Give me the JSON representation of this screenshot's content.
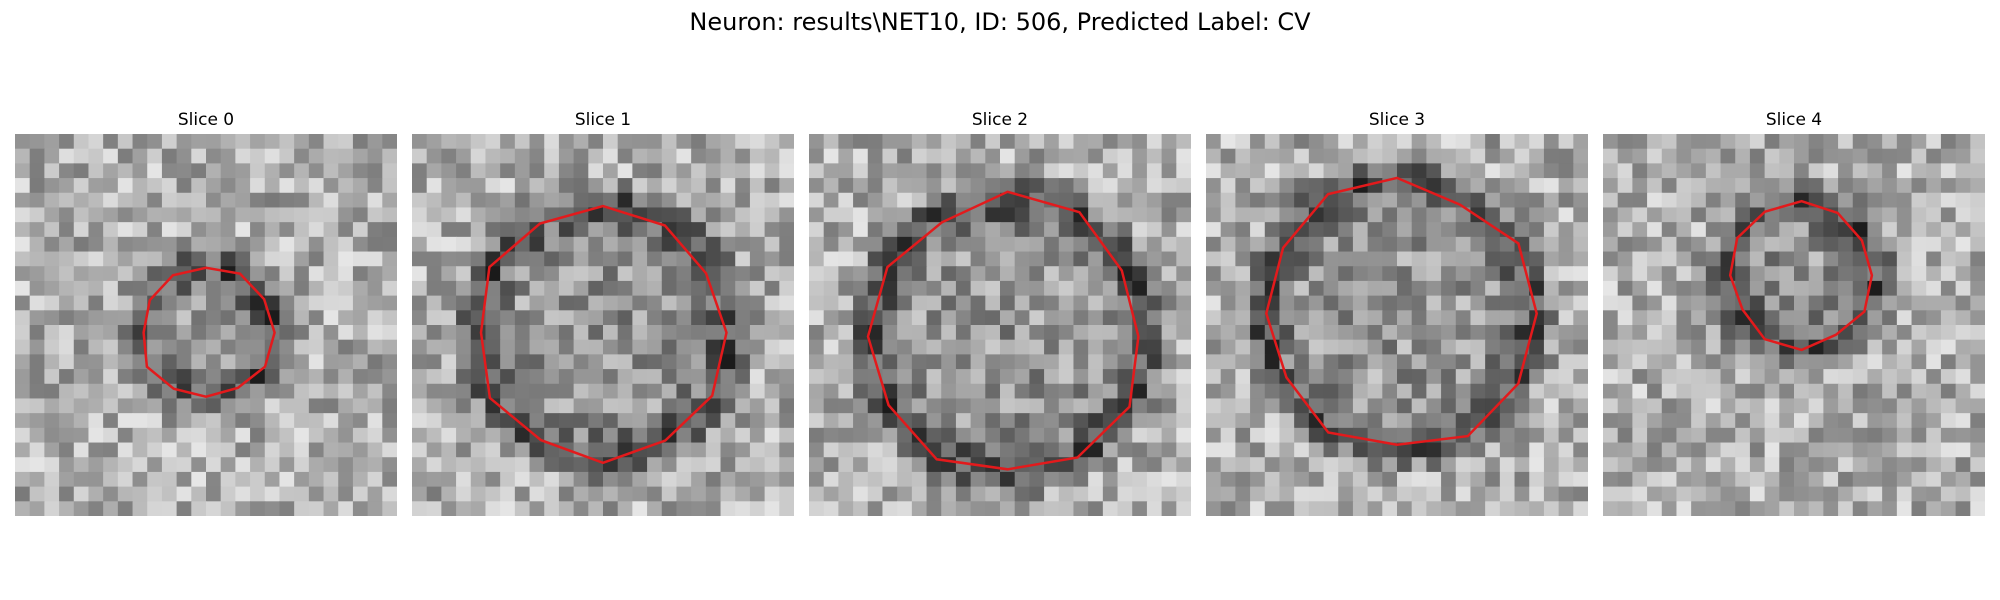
{
  "figure": {
    "title": "Neuron: results\\NET10, ID: 506, Predicted Label: CV"
  },
  "outline_color": "#e31a1c",
  "panels": [
    {
      "title": "Slice 0",
      "seed": 11,
      "ring_radius": 0.17,
      "ring_cx": 0.5,
      "ring_cy": 0.52
    },
    {
      "title": "Slice 1",
      "seed": 23,
      "ring_radius": 0.33,
      "ring_cx": 0.5,
      "ring_cy": 0.52
    },
    {
      "title": "Slice 2",
      "seed": 37,
      "ring_radius": 0.36,
      "ring_cx": 0.52,
      "ring_cy": 0.53
    },
    {
      "title": "Slice 3",
      "seed": 41,
      "ring_radius": 0.35,
      "ring_cx": 0.5,
      "ring_cy": 0.47
    },
    {
      "title": "Slice 4",
      "seed": 53,
      "ring_radius": 0.19,
      "ring_cx": 0.52,
      "ring_cy": 0.37
    }
  ]
}
